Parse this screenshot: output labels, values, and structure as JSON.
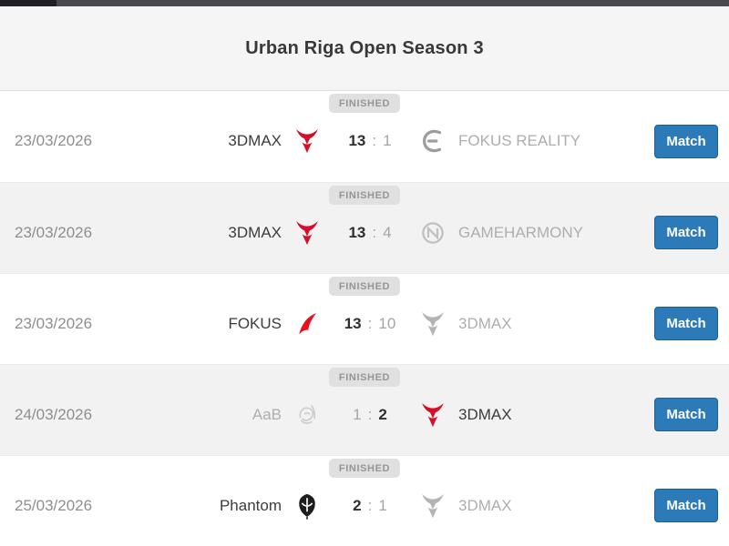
{
  "page": {
    "title": "Urban Riga Open Season 3",
    "match_button_label": "Match",
    "score_separator": ":",
    "status_label": "FINISHED"
  },
  "colors": {
    "button_blue": "#2d7ab8",
    "button_border": "#1c5d92",
    "brand_red": "#d50f2b",
    "winner_text": "#3c3c3c",
    "loser_text": "#aeaeae",
    "badge_bg": "#e0e0e0",
    "badge_text": "#969696",
    "alt_row_bg": "#f2f2f2"
  },
  "matches": [
    {
      "date": "23/03/2026",
      "status": "FINISHED",
      "team1": {
        "name": "3DMAX",
        "icon": "3dmax-devil-icon",
        "shape": "devil",
        "logo_color": "#d50f2b",
        "winner": true
      },
      "score1": "13",
      "score2": "1",
      "team2": {
        "name": "FOKUS REALITY",
        "icon": "fokus-reality-icon",
        "shape": "fokus-curve",
        "logo_color": "#9d9d9d",
        "winner": false
      }
    },
    {
      "date": "23/03/2026",
      "status": "FINISHED",
      "team1": {
        "name": "3DMAX",
        "icon": "3dmax-devil-icon",
        "shape": "devil",
        "logo_color": "#d50f2b",
        "winner": true
      },
      "score1": "13",
      "score2": "4",
      "team2": {
        "name": "GAMEHARMONY",
        "icon": "gameharmony-icon",
        "shape": "knot",
        "logo_color": "#c0c0c0",
        "winner": false
      }
    },
    {
      "date": "23/03/2026",
      "status": "FINISHED",
      "team1": {
        "name": "FOKUS",
        "icon": "fokus-icon",
        "shape": "fokus-swoosh",
        "logo_color": "#e8101f",
        "winner": true
      },
      "score1": "13",
      "score2": "10",
      "team2": {
        "name": "3DMAX",
        "icon": "3dmax-devil-gray-icon",
        "shape": "devil",
        "logo_color": "#b4b4b4",
        "winner": false
      }
    },
    {
      "date": "24/03/2026",
      "status": "FINISHED",
      "team1": {
        "name": "AaB",
        "icon": "aab-icon",
        "shape": "sketch",
        "logo_color": "#cccccc",
        "winner": false
      },
      "score1": "1",
      "score2": "2",
      "team2": {
        "name": "3DMAX",
        "icon": "3dmax-devil-icon",
        "shape": "devil",
        "logo_color": "#d50f2b",
        "winner": true
      }
    },
    {
      "date": "25/03/2026",
      "status": "FINISHED",
      "team1": {
        "name": "Phantom",
        "icon": "phantom-mask-icon",
        "shape": "phantom",
        "logo_color": "#1d1d1d",
        "winner": true
      },
      "score1": "2",
      "score2": "1",
      "team2": {
        "name": "3DMAX",
        "icon": "3dmax-devil-gray-icon",
        "shape": "devil",
        "logo_color": "#b4b4b4",
        "winner": false
      }
    }
  ]
}
